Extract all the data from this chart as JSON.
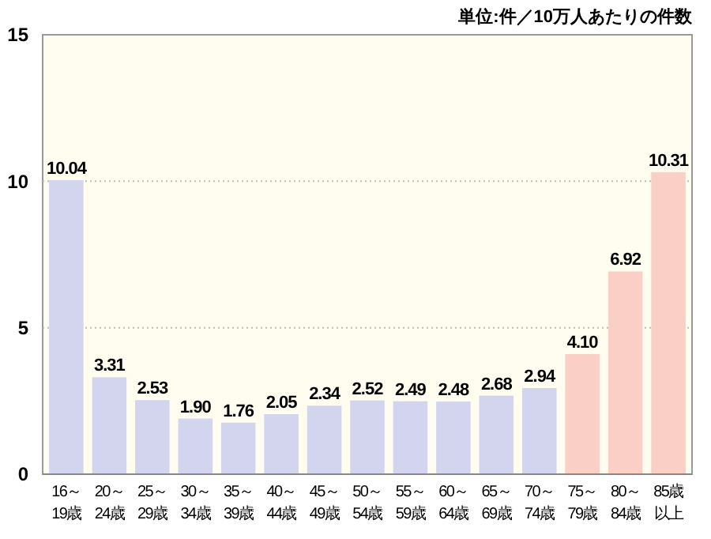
{
  "chart_data": {
    "type": "bar",
    "subtitle": "単位:件／10万人あたりの件数",
    "categories": [
      "16～19歳",
      "20～24歳",
      "25～29歳",
      "30～34歳",
      "35～39歳",
      "40～44歳",
      "45～49歳",
      "50～54歳",
      "55～59歳",
      "60～64歳",
      "65～69歳",
      "70～74歳",
      "75～79歳",
      "80～84歳",
      "85歳以上"
    ],
    "values": [
      10.04,
      3.31,
      2.53,
      1.9,
      1.76,
      2.05,
      2.34,
      2.52,
      2.49,
      2.48,
      2.68,
      2.94,
      4.1,
      6.92,
      10.31
    ],
    "value_labels": [
      "10.04",
      "3.31",
      "2.53",
      "1.90",
      "1.76",
      "2.05",
      "2.34",
      "2.52",
      "2.49",
      "2.48",
      "2.68",
      "2.94",
      "4.10",
      "6.92",
      "10.31"
    ],
    "colors": [
      "#d3d5ef",
      "#d3d5ef",
      "#d3d5ef",
      "#d3d5ef",
      "#d3d5ef",
      "#d3d5ef",
      "#d3d5ef",
      "#d3d5ef",
      "#d3d5ef",
      "#d3d5ef",
      "#d3d5ef",
      "#d3d5ef",
      "#f9cfc6",
      "#f9cfc6",
      "#f9cfc6"
    ],
    "ylim": [
      0,
      15
    ],
    "yticks": [
      0,
      5,
      10,
      15
    ],
    "grid": "y"
  }
}
